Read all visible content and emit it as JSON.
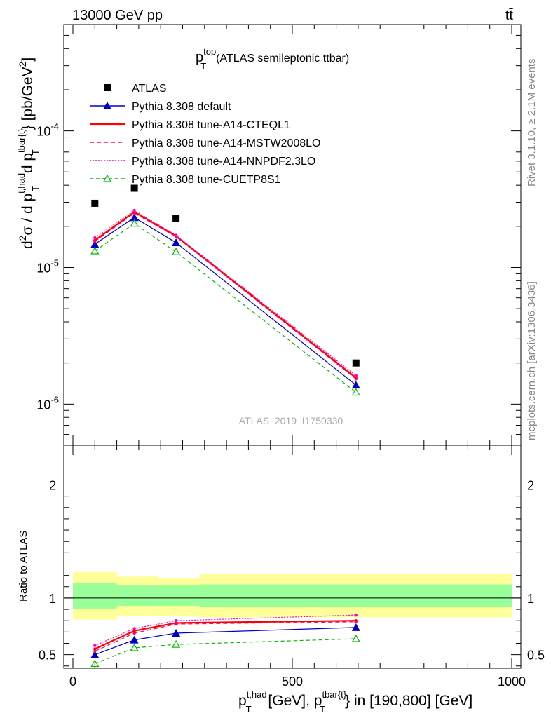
{
  "header": {
    "left": "13000 GeV pp",
    "right": "tt̄"
  },
  "panel_title": {
    "main": "p",
    "sup": "top",
    "sub": "T",
    "rest": "(ATLAS semileptonic ttbar)"
  },
  "watermark": "ATLAS_2019_I1750330",
  "side_labels": {
    "rivet": "Rivet 3.1.10, ≥ 2.1M events",
    "mcplots": "mcplots.cern.ch [arXiv:1306.3436]"
  },
  "ratio_ylabel": "Ratio to ATLAS",
  "colors": {
    "data": "#000000",
    "default": "#0000cc",
    "cteql1": "#ff0000",
    "mstw": "#ff0066",
    "nnpdf": "#ff00cc",
    "cuetp8s1": "#00bb00",
    "band_outer": "#ffff99",
    "band_inner": "#99ff99"
  },
  "chart_data": {
    "type": "line",
    "x_unit": "GeV",
    "xlim": [
      0,
      1000
    ],
    "x_ticks": [
      0,
      500,
      1000
    ],
    "main": {
      "ylog": true,
      "ylim": [
        5e-07,
        0.0006
      ],
      "y_tick_labels": [
        "10^-4",
        "10^-5",
        "10^-6"
      ],
      "x": [
        50,
        140,
        235,
        645
      ],
      "data": {
        "name": "ATLAS",
        "values": [
          2.95e-05,
          3.8e-05,
          2.3e-05,
          2e-06
        ]
      },
      "series": [
        {
          "name": "Pythia 8.308 default",
          "values": [
            1.48e-05,
            2.32e-05,
            1.52e-05,
            1.38e-06
          ]
        },
        {
          "name": "Pythia 8.308 tune-A14-CTEQL1",
          "values": [
            1.58e-05,
            2.55e-05,
            1.7e-05,
            1.56e-06
          ]
        },
        {
          "name": "Pythia 8.308 tune-A14-MSTW2008LO",
          "values": [
            1.55e-05,
            2.5e-05,
            1.68e-05,
            1.53e-06
          ]
        },
        {
          "name": "Pythia 8.308 tune-A14-NNPDF2.3LO",
          "values": [
            1.65e-05,
            2.62e-05,
            1.72e-05,
            1.62e-06
          ]
        },
        {
          "name": "Pythia 8.308 tune-CUETP8S1",
          "values": [
            1.32e-05,
            2.1e-05,
            1.3e-05,
            1.22e-06
          ]
        }
      ]
    },
    "ratio": {
      "ylim": [
        0.38,
        2.35
      ],
      "y_ticks": [
        0.5,
        1,
        2
      ],
      "bands": [
        {
          "x0": 0,
          "x1": 100,
          "outer": [
            0.81,
            1.23
          ],
          "inner": [
            0.9,
            1.13
          ]
        },
        {
          "x0": 100,
          "x1": 195,
          "outer": [
            0.84,
            1.19
          ],
          "inner": [
            0.93,
            1.11
          ]
        },
        {
          "x0": 195,
          "x1": 290,
          "outer": [
            0.84,
            1.18
          ],
          "inner": [
            0.93,
            1.11
          ]
        },
        {
          "x0": 290,
          "x1": 1000,
          "outer": [
            0.83,
            1.21
          ],
          "inner": [
            0.92,
            1.12
          ]
        }
      ],
      "series": [
        {
          "name": "Pythia 8.308 default",
          "values": [
            0.5,
            0.63,
            0.69,
            0.74
          ]
        },
        {
          "name": "Pythia 8.308 tune-A14-CTEQL1",
          "values": [
            0.55,
            0.71,
            0.78,
            0.8
          ]
        },
        {
          "name": "Pythia 8.308 tune-A14-MSTW2008LO",
          "values": [
            0.53,
            0.69,
            0.77,
            0.79
          ]
        },
        {
          "name": "Pythia 8.308 tune-A14-NNPDF2.3LO",
          "values": [
            0.58,
            0.73,
            0.8,
            0.85
          ]
        },
        {
          "name": "Pythia 8.308 tune-CUETP8S1",
          "values": [
            0.42,
            0.56,
            0.59,
            0.64
          ]
        }
      ]
    }
  }
}
